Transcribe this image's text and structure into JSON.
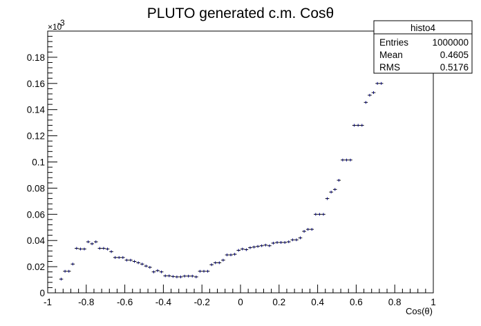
{
  "chart_data": {
    "type": "scatter",
    "title": "PLUTO generated c.m. Cosθ",
    "xlabel": "Cos(θ)",
    "ylabel": "",
    "xlim": [
      -1,
      1
    ],
    "ylim": [
      0,
      0.2
    ],
    "y_exponent_label": "×10",
    "y_exponent_power": "-3",
    "xticks": [
      -1,
      -0.8,
      -0.6,
      -0.4,
      -0.2,
      0,
      0.2,
      0.4,
      0.6,
      0.8,
      1
    ],
    "xtick_labels": [
      "-1",
      "-0.8",
      "-0.6",
      "-0.4",
      "-0.2",
      "0",
      "0.2",
      "0.4",
      "0.6",
      "0.8",
      "1"
    ],
    "yticks": [
      0,
      0.02,
      0.04,
      0.06,
      0.08,
      0.1,
      0.12,
      0.14,
      0.16,
      0.18
    ],
    "ytick_labels": [
      "0",
      "0.02",
      "0.04",
      "0.06",
      "0.08",
      "0.1",
      "0.12",
      "0.14",
      "0.16",
      "0.18"
    ],
    "bin_width": 0.02,
    "marker_color": "#00008b",
    "series": [
      {
        "x": [
          -0.93,
          -0.91,
          -0.89,
          -0.87,
          -0.85,
          -0.83,
          -0.81,
          -0.79,
          -0.77,
          -0.75,
          -0.73,
          -0.71,
          -0.69,
          -0.67,
          -0.65,
          -0.63,
          -0.61,
          -0.59,
          -0.57,
          -0.55,
          -0.53,
          -0.51,
          -0.49,
          -0.47,
          -0.45,
          -0.43,
          -0.41,
          -0.39,
          -0.37,
          -0.35,
          -0.33,
          -0.31,
          -0.29,
          -0.27,
          -0.25,
          -0.23,
          -0.21,
          -0.19,
          -0.17,
          -0.15,
          -0.13,
          -0.11,
          -0.09,
          -0.07,
          -0.05,
          -0.03,
          -0.01,
          0.01,
          0.03,
          0.05,
          0.07,
          0.09,
          0.11,
          0.13,
          0.15,
          0.17,
          0.19,
          0.21,
          0.23,
          0.25,
          0.27,
          0.29,
          0.31,
          0.33,
          0.35,
          0.37,
          0.39,
          0.41,
          0.43,
          0.45,
          0.47,
          0.49,
          0.51,
          0.53,
          0.55,
          0.57,
          0.59,
          0.61,
          0.63,
          0.65,
          0.67,
          0.69,
          0.71,
          0.73
        ],
        "y": [
          0.0105,
          0.0165,
          0.0165,
          0.022,
          0.034,
          0.0335,
          0.0335,
          0.039,
          0.0375,
          0.039,
          0.034,
          0.034,
          0.0335,
          0.0315,
          0.027,
          0.027,
          0.027,
          0.025,
          0.025,
          0.024,
          0.023,
          0.022,
          0.0205,
          0.0195,
          0.016,
          0.017,
          0.016,
          0.013,
          0.013,
          0.0125,
          0.0122,
          0.0122,
          0.0128,
          0.0128,
          0.0128,
          0.0122,
          0.0165,
          0.0165,
          0.0165,
          0.0215,
          0.023,
          0.023,
          0.025,
          0.029,
          0.029,
          0.0295,
          0.0325,
          0.0335,
          0.033,
          0.0345,
          0.035,
          0.0355,
          0.036,
          0.0365,
          0.036,
          0.038,
          0.0385,
          0.0385,
          0.0385,
          0.039,
          0.0405,
          0.0405,
          0.042,
          0.047,
          0.0485,
          0.0485,
          0.06,
          0.06,
          0.06,
          0.072,
          0.077,
          0.079,
          0.086,
          0.1015,
          0.1015,
          0.1015,
          0.128,
          0.128,
          0.128,
          0.1455,
          0.151,
          0.153,
          0.16,
          0.16
        ]
      }
    ]
  },
  "stats_box": {
    "name": "histo4",
    "rows": [
      {
        "label": "Entries",
        "value": "1000000"
      },
      {
        "label": "Mean",
        "value": "0.4605"
      },
      {
        "label": "RMS",
        "value": "0.5176"
      }
    ]
  }
}
